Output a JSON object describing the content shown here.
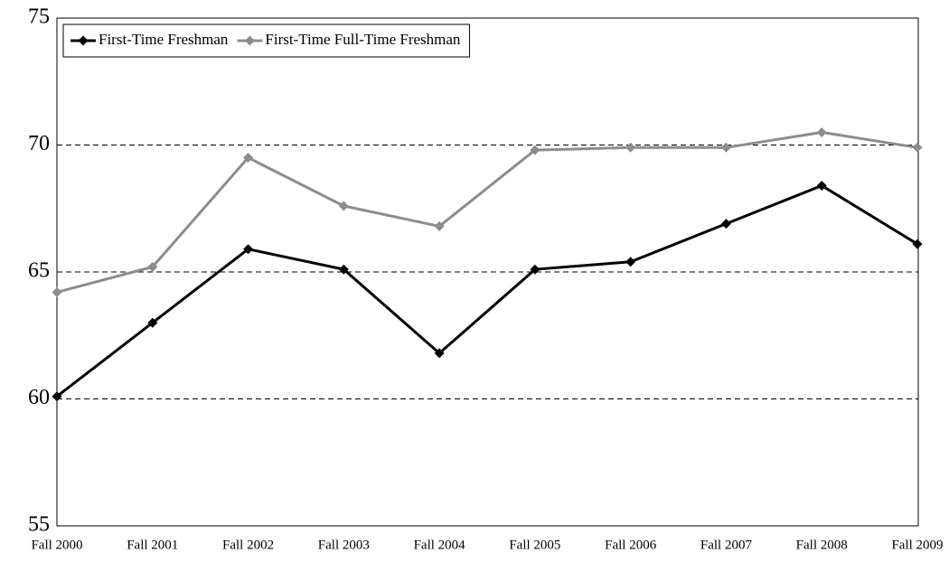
{
  "chart_data": {
    "type": "line",
    "categories": [
      "Fall 2000",
      "Fall 2001",
      "Fall 2002",
      "Fall 2003",
      "Fall 2004",
      "Fall 2005",
      "Fall 2006",
      "Fall 2007",
      "Fall 2008",
      "Fall 2009"
    ],
    "series": [
      {
        "name": "First-Time Freshman",
        "color": "#000000",
        "values": [
          60.1,
          63.0,
          65.9,
          65.1,
          61.8,
          65.1,
          65.4,
          66.9,
          68.4,
          66.1
        ]
      },
      {
        "name": "First-Time Full-Time Freshman",
        "color": "#8c8c8c",
        "values": [
          64.2,
          65.2,
          69.5,
          67.6,
          66.8,
          69.8,
          69.9,
          69.9,
          70.5,
          69.9
        ]
      }
    ],
    "ylim": [
      55,
      75
    ],
    "yticks": [
      55,
      60,
      65,
      70,
      75
    ],
    "grid": true,
    "legend": "upper left"
  }
}
